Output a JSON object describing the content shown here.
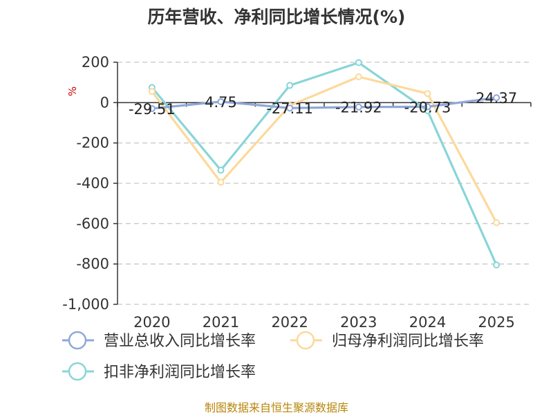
{
  "chart_data": {
    "type": "line",
    "title": "历年营收、净利同比增长情况(%)",
    "unit_label": "%",
    "categories": [
      "2020",
      "2021",
      "2022",
      "2023",
      "2024",
      "2025"
    ],
    "ylim": [
      -1000,
      200
    ],
    "yticks": [
      200,
      0,
      -200,
      -400,
      -600,
      -800,
      -1000
    ],
    "ytick_labels": [
      "200",
      "0",
      "-200",
      "-400",
      "-600",
      "-800",
      "-1,000"
    ],
    "grid": true,
    "legend_position": "bottom-left",
    "series": [
      {
        "name": "营业总收入同比增长率",
        "color": "#8fa8d8",
        "values": [
          -29.51,
          4.75,
          -27.11,
          -21.92,
          -20.73,
          24.37
        ],
        "labels": [
          "-29.51",
          "4.75",
          "-27.11",
          "-21.92",
          "-20.73",
          "24.37"
        ]
      },
      {
        "name": "归母净利润同比增长率",
        "color": "#fcd99a",
        "values": [
          55,
          -395,
          -15,
          128,
          45,
          -595
        ]
      },
      {
        "name": "扣非净利润同比增长率",
        "color": "#88d5d8",
        "values": [
          75,
          -335,
          85,
          198,
          -40,
          -805
        ]
      }
    ]
  },
  "source": "制图数据来自恒生聚源数据库"
}
